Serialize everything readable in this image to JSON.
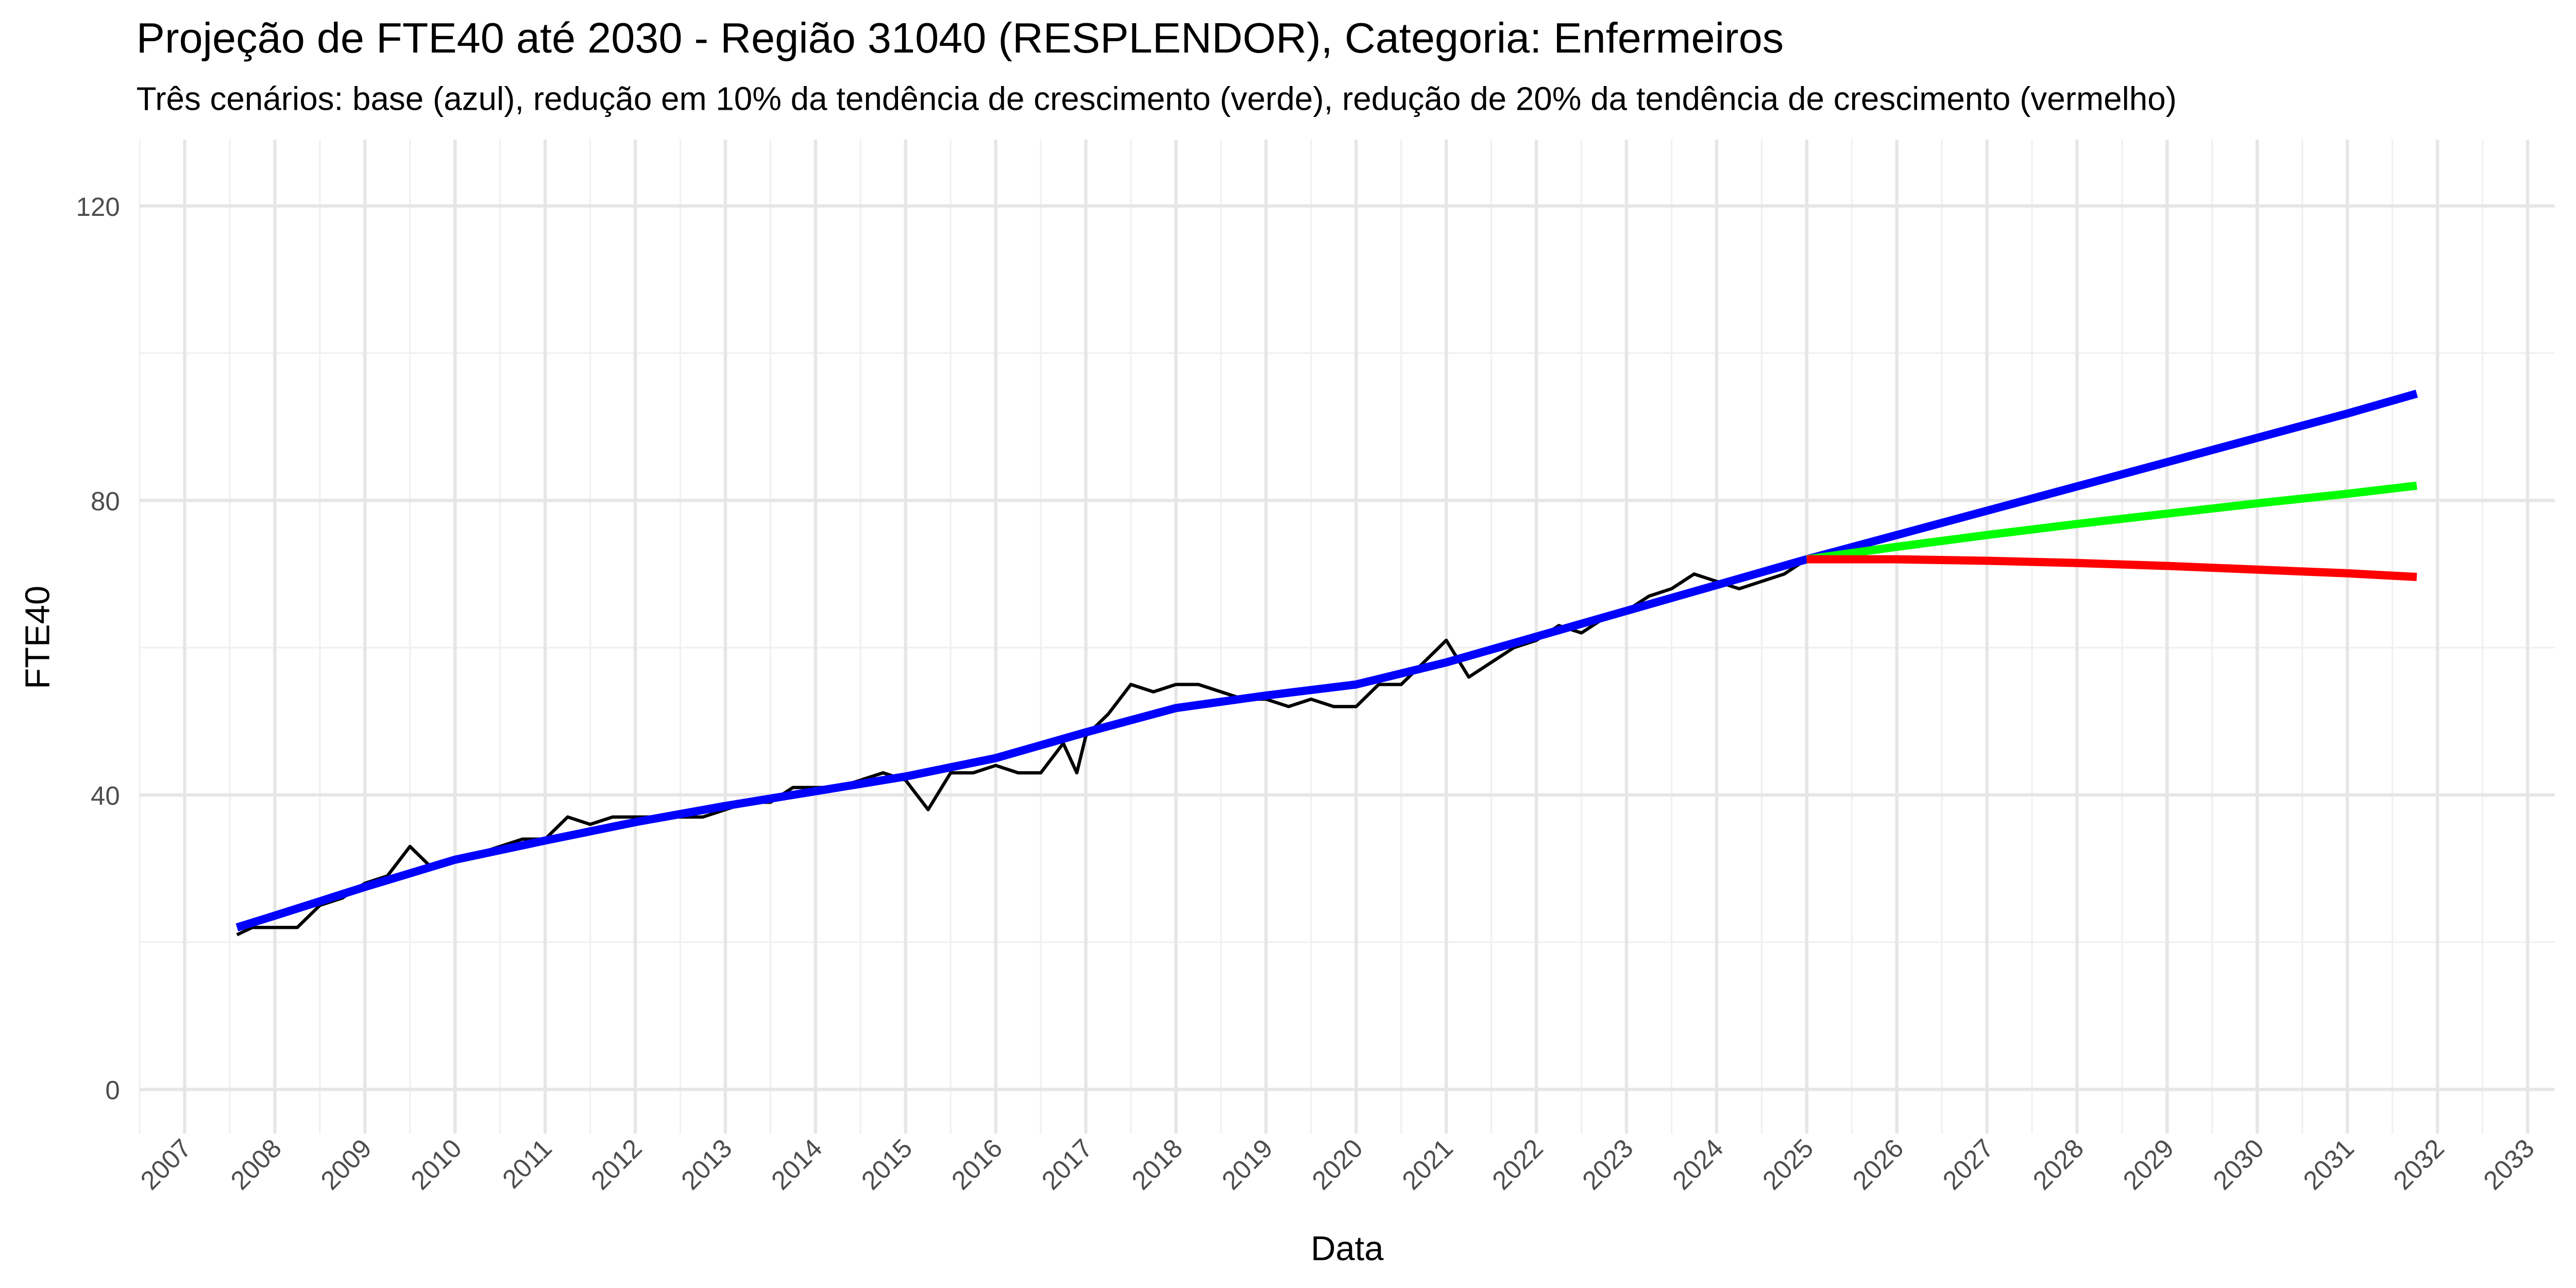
{
  "chart_data": {
    "type": "line",
    "title": "Projeção de FTE40 até 2030 - Região 31040 (RESPLENDOR), Categoria: Enfermeiros",
    "subtitle": "Três cenários: base (azul), redução em 10% da tendência de crescimento (verde), redução de 20% da tendência de crescimento (vermelho)",
    "x_label": "Data",
    "y_label": "FTE40",
    "xlim": [
      2006.5,
      2033.3
    ],
    "ylim": [
      -6,
      129
    ],
    "xticks": [
      2007,
      2008,
      2009,
      2010,
      2011,
      2012,
      2013,
      2014,
      2015,
      2016,
      2017,
      2018,
      2019,
      2020,
      2021,
      2022,
      2023,
      2024,
      2025,
      2026,
      2027,
      2028,
      2029,
      2030,
      2031,
      2032,
      2033
    ],
    "xminor": [
      2006.5,
      2007.5,
      2008.5,
      2009.5,
      2010.5,
      2011.5,
      2012.5,
      2013.5,
      2014.5,
      2015.5,
      2016.5,
      2017.5,
      2018.5,
      2019.5,
      2020.5,
      2021.5,
      2022.5,
      2023.5,
      2024.5,
      2025.5,
      2026.5,
      2027.5,
      2028.5,
      2029.5,
      2030.5,
      2031.5,
      2032.5
    ],
    "yticks": [
      0,
      40,
      80,
      120
    ],
    "yminor": [
      20,
      60,
      100
    ],
    "grid": true,
    "series": [
      {
        "color": "#000000",
        "width": 2,
        "x": [
          2007.58,
          2007.75,
          2008.0,
          2008.25,
          2008.5,
          2008.75,
          2009.0,
          2009.25,
          2009.5,
          2009.75,
          2010.0,
          2010.25,
          2010.5,
          2010.75,
          2011.0,
          2011.25,
          2011.5,
          2011.75,
          2012.0,
          2012.25,
          2012.5,
          2012.75,
          2013.0,
          2013.25,
          2013.5,
          2013.75,
          2014.0,
          2014.25,
          2014.5,
          2014.75,
          2015.0,
          2015.25,
          2015.5,
          2015.75,
          2016.0,
          2016.25,
          2016.5,
          2016.75,
          2016.9,
          2017.0,
          2017.25,
          2017.5,
          2017.75,
          2018.0,
          2018.25,
          2018.5,
          2018.75,
          2019.0,
          2019.25,
          2019.5,
          2019.75,
          2020.0,
          2020.25,
          2020.5,
          2020.75,
          2021.0,
          2021.25,
          2021.5,
          2021.75,
          2022.0,
          2022.25,
          2022.5,
          2022.75,
          2023.0,
          2023.25,
          2023.5,
          2023.75,
          2024.0,
          2024.25,
          2024.5,
          2024.75,
          2025.0
        ],
        "values": [
          21,
          22,
          22,
          22,
          25,
          26,
          28,
          29,
          33,
          30,
          31,
          32,
          33,
          34,
          34,
          37,
          36,
          37,
          37,
          37,
          37,
          37,
          38,
          39,
          39,
          41,
          41,
          41,
          42,
          43,
          42,
          38,
          43,
          43,
          44,
          43,
          43,
          47,
          43,
          48,
          51,
          55,
          54,
          55,
          55,
          54,
          53,
          53,
          52,
          53,
          52,
          52,
          55,
          55,
          58,
          61,
          56,
          58,
          60,
          61,
          63,
          62,
          64,
          65,
          67,
          68,
          70,
          69,
          68,
          69,
          70,
          72
        ]
      },
      {
        "color": "#0000ff",
        "width": 5,
        "x": [
          2007.58,
          2008,
          2009,
          2010,
          2011,
          2012,
          2013,
          2014,
          2015,
          2016,
          2017,
          2018,
          2019,
          2020,
          2021,
          2022,
          2023,
          2024,
          2025,
          2026,
          2027,
          2028,
          2029,
          2030,
          2031,
          2031.77
        ],
        "values": [
          22,
          23.6,
          27.5,
          31.2,
          33.8,
          36.3,
          38.5,
          40.5,
          42.5,
          45,
          48.5,
          51.8,
          53.5,
          55,
          58,
          61.5,
          65,
          68.5,
          72,
          75.3,
          78.6,
          81.9,
          85.2,
          88.5,
          91.8,
          94.5
        ]
      },
      {
        "color": "#00ff00",
        "width": 5,
        "x": [
          2025,
          2026,
          2027,
          2028,
          2029,
          2030,
          2031,
          2031.77
        ],
        "values": [
          72,
          73.7,
          75.3,
          76.8,
          78.2,
          79.6,
          80.9,
          82
        ]
      },
      {
        "color": "#ff0000",
        "width": 5,
        "x": [
          2025,
          2026,
          2027,
          2028,
          2029,
          2030,
          2031,
          2031.77
        ],
        "values": [
          72,
          72,
          71.8,
          71.5,
          71.1,
          70.6,
          70.1,
          69.6
        ]
      }
    ]
  }
}
